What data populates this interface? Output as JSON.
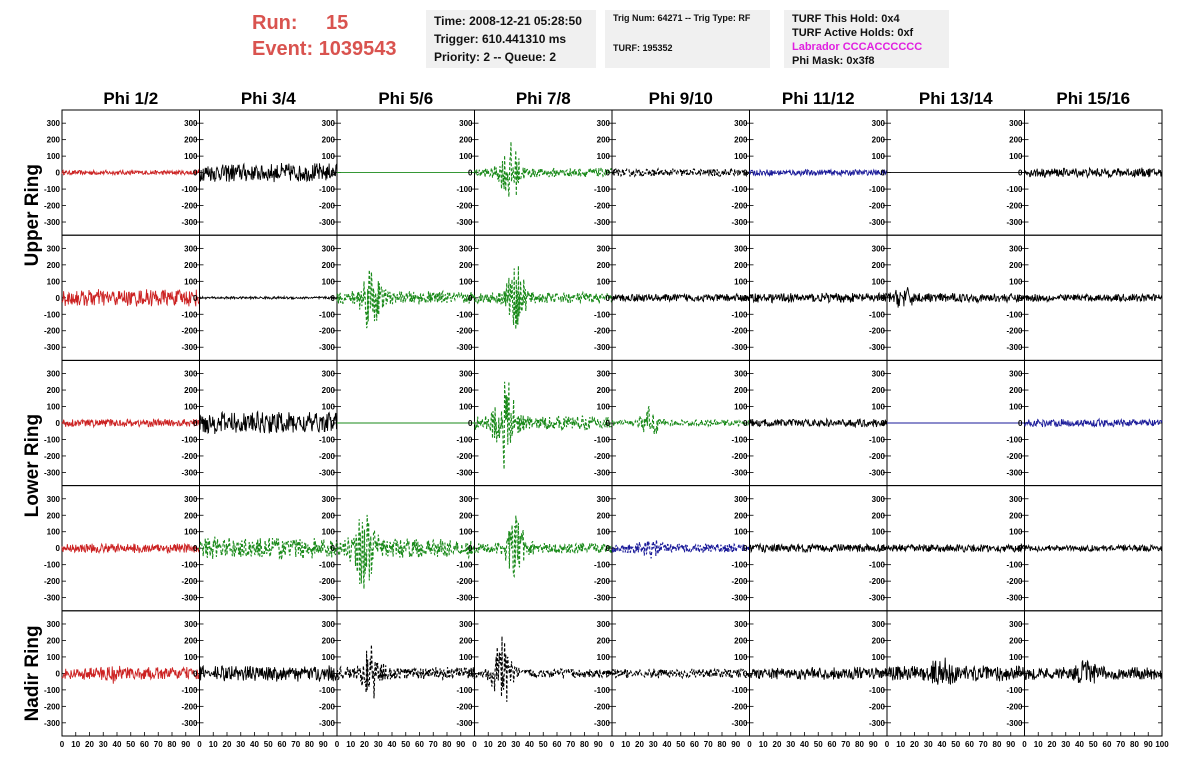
{
  "header": {
    "run_label": "Run:",
    "run_value": "15",
    "event_label": "Event:",
    "event_value": "1039543",
    "time_line": "Time: 2008-12-21 05:28:50",
    "trigger_line": "Trigger: 610.441310 ms",
    "priority_line": "Priority: 2 -- Queue: 2",
    "trig_line": "Trig Num: 64271 -- Trig Type: RF",
    "turf_line": "TURF: 195352",
    "turf_hold_line": "TURF This Hold: 0x4",
    "turf_active_line": "TURF Active Holds: 0xf",
    "labrador_line": "Labrador CCCACCCCCC",
    "phi_mask_line": "Phi Mask: 0x3f8"
  },
  "colors": {
    "run_text": "#d9534f",
    "labrador_text": "#e020e0",
    "info_bg": "#f0f0f0"
  },
  "chart_data": {
    "type": "line",
    "description_of_layout": "grid of waveform panels, 5 rows x 8 columns",
    "column_titles": [
      "Phi 1/2",
      "Phi 3/4",
      "Phi 5/6",
      "Phi 7/8",
      "Phi 9/10",
      "Phi 11/12",
      "Phi 13/14",
      "Phi 15/16"
    ],
    "row_labels": [
      {
        "text": "Upper Ring",
        "rows": [
          0,
          1
        ]
      },
      {
        "text": "Lower Ring",
        "rows": [
          2,
          3
        ]
      },
      {
        "text": "Nadir Ring",
        "rows": [
          4
        ]
      }
    ],
    "ylim": [
      -380,
      380
    ],
    "yticks": [
      300,
      200,
      100,
      0,
      -100,
      -200,
      -300
    ],
    "xlim": [
      0,
      100
    ],
    "xticks": [
      0,
      10,
      20,
      30,
      40,
      50,
      60,
      70,
      80,
      90,
      100
    ],
    "series_colors": {
      "red": "#cc2222",
      "black": "#000000",
      "green": "#1a8a1a",
      "blue": "#1a1a99"
    },
    "panels": [
      [
        {
          "color": "red",
          "amp": 15,
          "dashed": false,
          "burst": null
        },
        {
          "color": "black",
          "amp": 60,
          "dashed": false,
          "burst": null
        },
        {
          "color": "green",
          "amp": 0,
          "dashed": false,
          "burst": null
        },
        {
          "color": "green",
          "amp": 30,
          "dashed": true,
          "burst": [
            26,
            200
          ]
        },
        {
          "color": "black",
          "amp": 25,
          "dashed": true,
          "burst": null
        },
        {
          "color": "blue",
          "amp": 20,
          "dashed": false,
          "burst": null
        },
        {
          "color": "black",
          "amp": 0,
          "dashed": false,
          "burst": null
        },
        {
          "color": "black",
          "amp": 30,
          "dashed": false,
          "burst": null
        }
      ],
      [
        {
          "color": "red",
          "amp": 55,
          "dashed": false,
          "burst": null
        },
        {
          "color": "black",
          "amp": 8,
          "dashed": false,
          "burst": null
        },
        {
          "color": "green",
          "amp": 40,
          "dashed": true,
          "burst": [
            25,
            230
          ]
        },
        {
          "color": "green",
          "amp": 35,
          "dashed": true,
          "burst": [
            30,
            210
          ]
        },
        {
          "color": "black",
          "amp": 25,
          "dashed": false,
          "burst": null
        },
        {
          "color": "black",
          "amp": 30,
          "dashed": false,
          "burst": null
        },
        {
          "color": "black",
          "amp": 30,
          "dashed": false,
          "burst": [
            12,
            80
          ]
        },
        {
          "color": "black",
          "amp": 25,
          "dashed": false,
          "burst": null
        }
      ],
      [
        {
          "color": "red",
          "amp": 25,
          "dashed": false,
          "burst": null
        },
        {
          "color": "black",
          "amp": 70,
          "dashed": false,
          "burst": null
        },
        {
          "color": "green",
          "amp": 0,
          "dashed": false,
          "burst": null
        },
        {
          "color": "green",
          "amp": 45,
          "dashed": true,
          "burst": [
            22,
            300
          ]
        },
        {
          "color": "green",
          "amp": 20,
          "dashed": true,
          "burst": [
            28,
            110
          ]
        },
        {
          "color": "black",
          "amp": 25,
          "dashed": false,
          "burst": null
        },
        {
          "color": "blue",
          "amp": 0,
          "dashed": false,
          "burst": null
        },
        {
          "color": "blue",
          "amp": 25,
          "dashed": false,
          "burst": null
        }
      ],
      [
        {
          "color": "red",
          "amp": 30,
          "dashed": false,
          "burst": null
        },
        {
          "color": "green",
          "amp": 70,
          "dashed": true,
          "burst": null
        },
        {
          "color": "green",
          "amp": 60,
          "dashed": true,
          "burst": [
            20,
            280
          ]
        },
        {
          "color": "green",
          "amp": 35,
          "dashed": true,
          "burst": [
            30,
            220
          ]
        },
        {
          "color": "blue",
          "amp": 30,
          "dashed": true,
          "burst": [
            28,
            70
          ]
        },
        {
          "color": "black",
          "amp": 25,
          "dashed": false,
          "burst": null
        },
        {
          "color": "black",
          "amp": 25,
          "dashed": false,
          "burst": null
        },
        {
          "color": "black",
          "amp": 20,
          "dashed": false,
          "burst": null
        }
      ],
      [
        {
          "color": "red",
          "amp": 40,
          "dashed": false,
          "burst": [
            35,
            70
          ]
        },
        {
          "color": "black",
          "amp": 50,
          "dashed": false,
          "burst": null
        },
        {
          "color": "black",
          "amp": 40,
          "dashed": true,
          "burst": [
            25,
            180
          ]
        },
        {
          "color": "black",
          "amp": 30,
          "dashed": true,
          "burst": [
            20,
            230
          ]
        },
        {
          "color": "black",
          "amp": 30,
          "dashed": true,
          "burst": null
        },
        {
          "color": "black",
          "amp": 40,
          "dashed": false,
          "burst": null
        },
        {
          "color": "black",
          "amp": 50,
          "dashed": false,
          "burst": [
            40,
            120
          ]
        },
        {
          "color": "black",
          "amp": 40,
          "dashed": false,
          "burst": [
            45,
            90
          ]
        }
      ]
    ]
  }
}
